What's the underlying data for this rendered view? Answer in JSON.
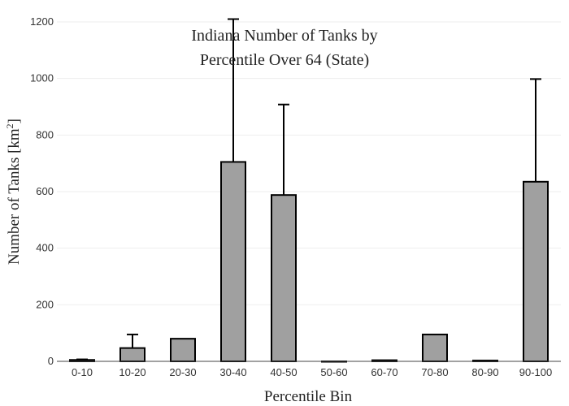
{
  "chart_data": {
    "type": "bar",
    "title_lines": [
      "Indiana Number of Tanks by",
      "Percentile Over 64 (State)"
    ],
    "xlabel": "Percentile Bin",
    "ylabel_main": "Number of Tanks  [km",
    "ylabel_sup": "2",
    "ylabel_end": "]",
    "categories": [
      "0-10",
      "10-20",
      "20-30",
      "30-40",
      "40-50",
      "50-60",
      "60-70",
      "70-80",
      "80-90",
      "90-100"
    ],
    "values": [
      5,
      47,
      80,
      705,
      588,
      0,
      4,
      95,
      3,
      635
    ],
    "error_upper": [
      7,
      95,
      80,
      1210,
      908,
      0,
      4,
      95,
      3,
      998
    ],
    "ylim": [
      0,
      1200
    ],
    "yticks": [
      "0",
      "200",
      "400",
      "600",
      "800",
      "1000",
      "1200"
    ],
    "grid": true,
    "bar_color": "#a0a0a0"
  }
}
